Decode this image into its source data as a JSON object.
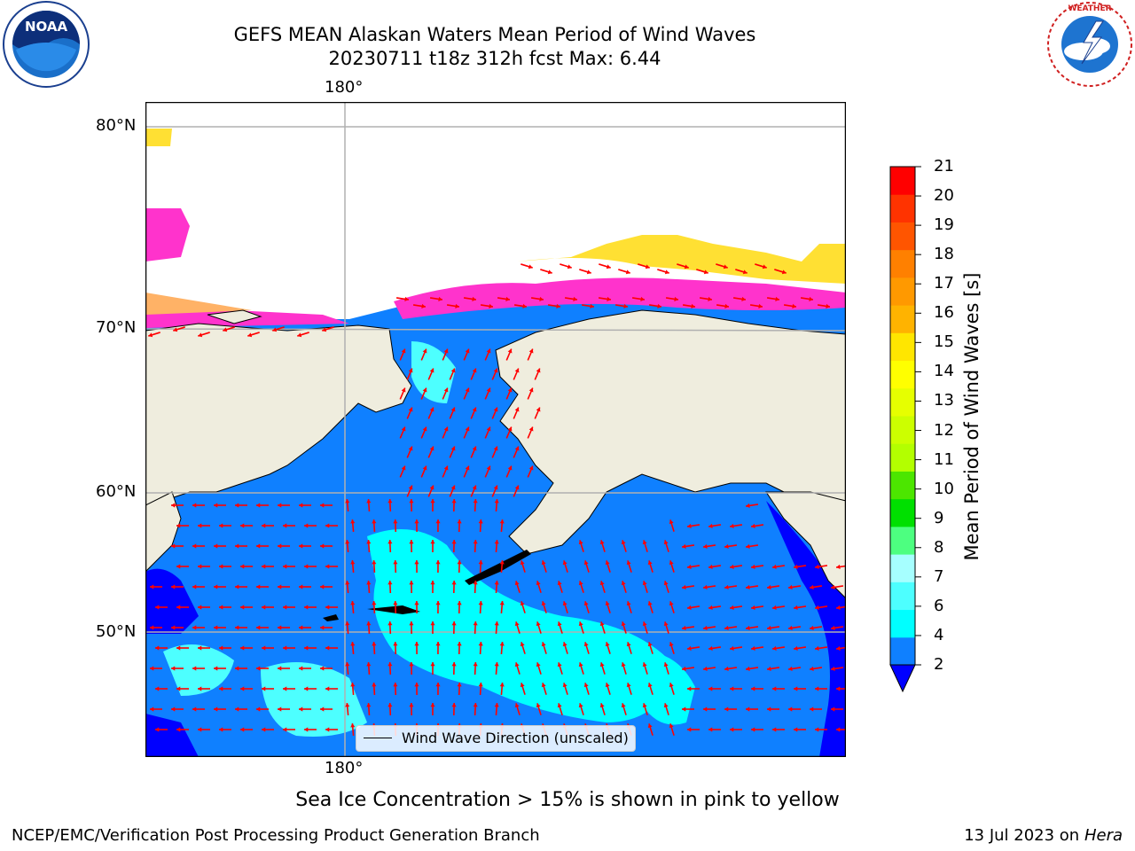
{
  "header": {
    "title_line1": "GEFS MEAN Alaskan Waters Mean Period of Wind Waves",
    "title_line2": "20230711 t18z 312h fcst    Max: 6.44"
  },
  "logos": {
    "left": {
      "icon": "noaa-logo",
      "text": "NOAA"
    },
    "right": {
      "icon": "nws-logo",
      "text": "NATIONAL WEATHER SERVICE"
    }
  },
  "map": {
    "lat_labels": [
      "80°N",
      "70°N",
      "60°N",
      "50°N"
    ],
    "lon_label_top": "180°",
    "lon_label_bottom": "180°",
    "legend_label": "Wind Wave Direction (unscaled)",
    "colors": {
      "land": "#efedde",
      "ocean_2_4": "#0f80ff",
      "ocean_4_6": "#00ffff",
      "ocean_6_8": "#4dffff",
      "below_2": "#0000ff",
      "ice_low": "#ff33cc",
      "ice_mid": "#ffb266",
      "ice_high": "#ffe033",
      "arrow": "#ff0000",
      "grid": "#b0b0b0"
    }
  },
  "colorbar": {
    "label": "Mean Period of Wind Waves [s]",
    "ticks": [
      "21",
      "20",
      "19",
      "18",
      "17",
      "16",
      "15",
      "14",
      "13",
      "12",
      "11",
      "10",
      "9",
      "8",
      "7",
      "6",
      "4",
      "2"
    ],
    "levels": [
      {
        "color": "#0f80ff"
      },
      {
        "color": "#00ffff"
      },
      {
        "color": "#4dffff"
      },
      {
        "color": "#a6ffff"
      },
      {
        "color": "#4dff80"
      },
      {
        "color": "#00e000"
      },
      {
        "color": "#4ce600"
      },
      {
        "color": "#b3ff00"
      },
      {
        "color": "#ccff00"
      },
      {
        "color": "#e6ff00"
      },
      {
        "color": "#ffff00"
      },
      {
        "color": "#ffe600"
      },
      {
        "color": "#ffb300"
      },
      {
        "color": "#ff9900"
      },
      {
        "color": "#ff8000"
      },
      {
        "color": "#ff5500"
      },
      {
        "color": "#ff3300"
      },
      {
        "color": "#ff0000"
      }
    ],
    "extend_color": "#0000ff"
  },
  "notes": {
    "ice": "Sea Ice Concentration > 15% is shown in pink to yellow"
  },
  "footer": {
    "left": "NCEP/EMC/Verification Post Processing Product Generation Branch",
    "right_date": "13 Jul 2023 on ",
    "right_machine": "Hera"
  }
}
